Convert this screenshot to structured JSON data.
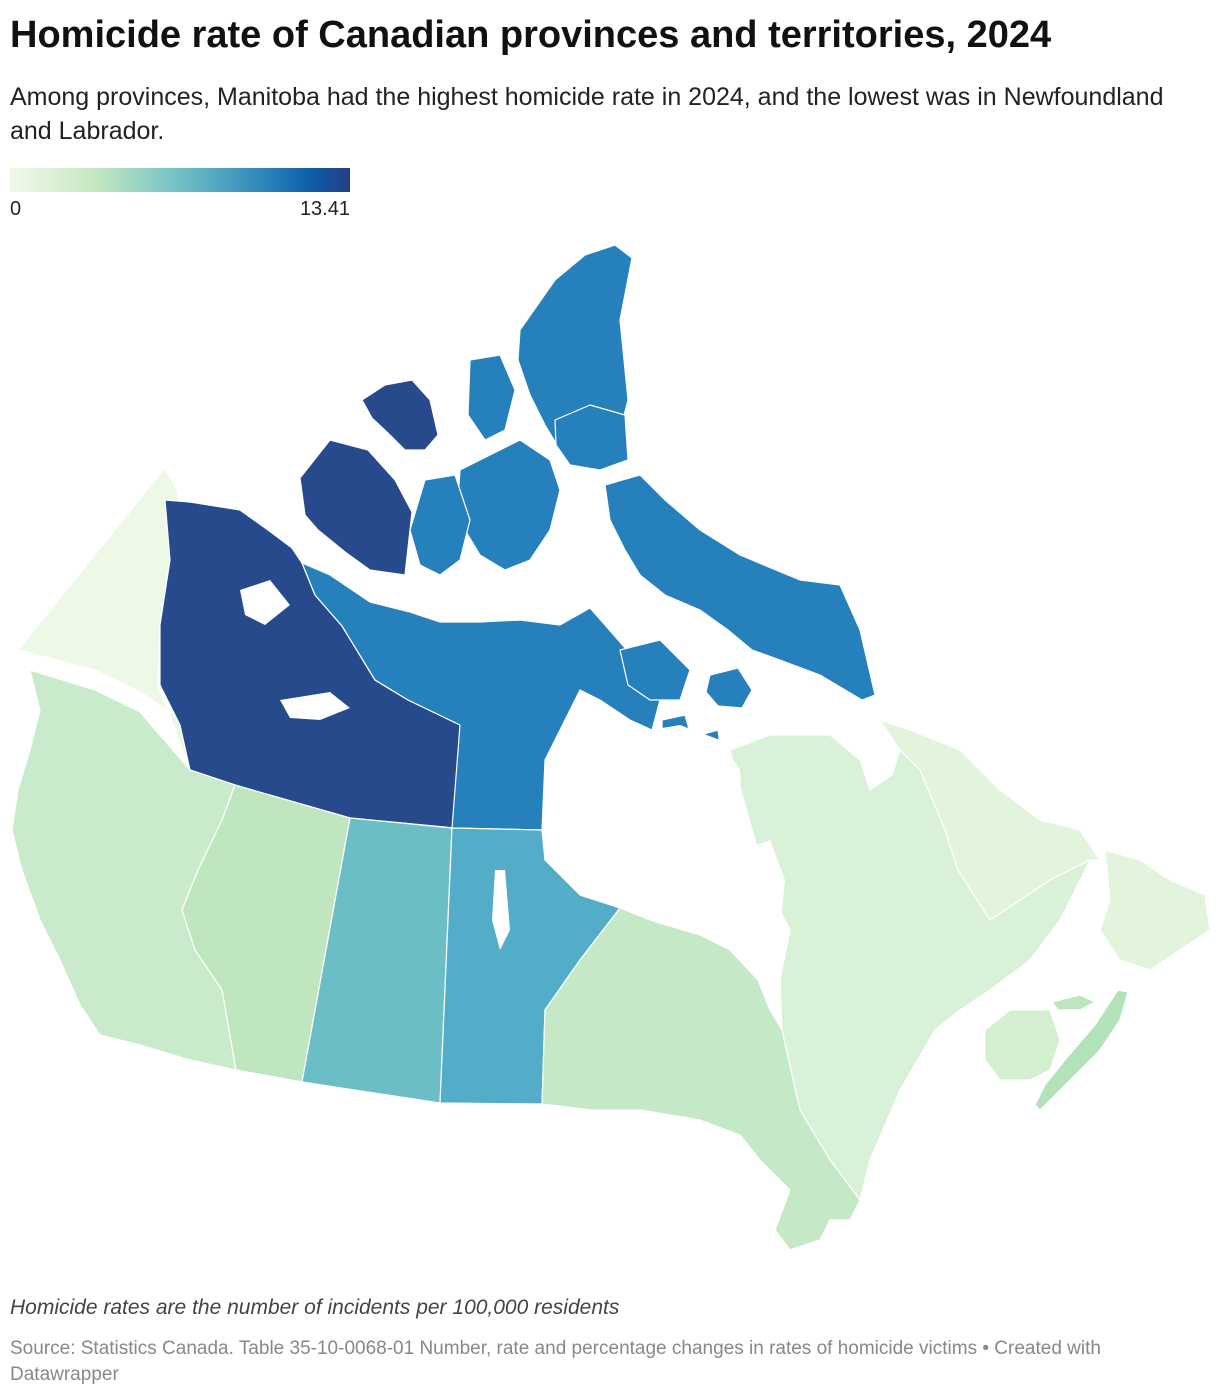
{
  "header": {
    "title": "Homicide rate of Canadian provinces and territories, 2024",
    "subtitle": "Among provinces, Manitoba had the highest homicide rate in 2024, and the lowest was in Newfoundland and Labrador."
  },
  "legend": {
    "min_label": "0",
    "max_label": "13.41",
    "colors": [
      "#f2f9ea",
      "#c4e8c2",
      "#71c0c6",
      "#2c85ba",
      "#0c5ea8",
      "#263e86"
    ]
  },
  "map": {
    "type": "choropleth",
    "scale_min": 0,
    "scale_max": 13.41,
    "regions": [
      {
        "name": "Yukon",
        "color": "#eef8e6"
      },
      {
        "name": "Northwest Territories",
        "color": "#264a8c"
      },
      {
        "name": "Nunavut",
        "color": "#2580bb"
      },
      {
        "name": "British Columbia",
        "color": "#c9ebcc"
      },
      {
        "name": "Alberta",
        "color": "#c0e6c0"
      },
      {
        "name": "Saskatchewan",
        "color": "#6bbdc6"
      },
      {
        "name": "Manitoba",
        "color": "#53adc8"
      },
      {
        "name": "Ontario",
        "color": "#c5e9c6"
      },
      {
        "name": "Quebec",
        "color": "#d9f1d6"
      },
      {
        "name": "Newfoundland and Labrador",
        "color": "#e3f4dd"
      },
      {
        "name": "New Brunswick",
        "color": "#d3efd0"
      },
      {
        "name": "Nova Scotia",
        "color": "#b1e2b8"
      },
      {
        "name": "Prince Edward Island",
        "color": "#bde6bf"
      }
    ]
  },
  "footer": {
    "notes": "Homicide rates are the number of incidents per 100,000 residents",
    "source": "Source: Statistics Canada. Table 35-10-0068-01 Number, rate and percentage changes in rates of homicide victims • Created with Datawrapper"
  }
}
